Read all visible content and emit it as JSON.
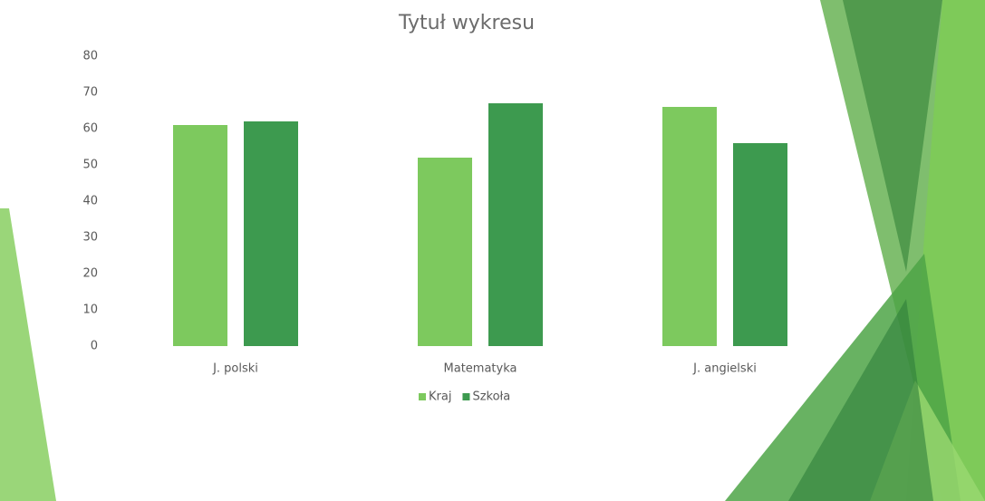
{
  "chart_data": {
    "type": "bar",
    "title": "Tytuł wykresu",
    "categories": [
      "J. polski",
      "Matematyka",
      "J. angielski"
    ],
    "series": [
      {
        "name": "Kraj",
        "color": "#7dc95e",
        "values": [
          61,
          52,
          66
        ]
      },
      {
        "name": "Szkoła",
        "color": "#3d9a4f",
        "values": [
          62,
          67,
          56
        ]
      }
    ],
    "ylim": [
      0,
      80
    ],
    "yticks": [
      0,
      10,
      20,
      30,
      40,
      50,
      60,
      70,
      80
    ],
    "grid": false,
    "legend": "bottom"
  }
}
